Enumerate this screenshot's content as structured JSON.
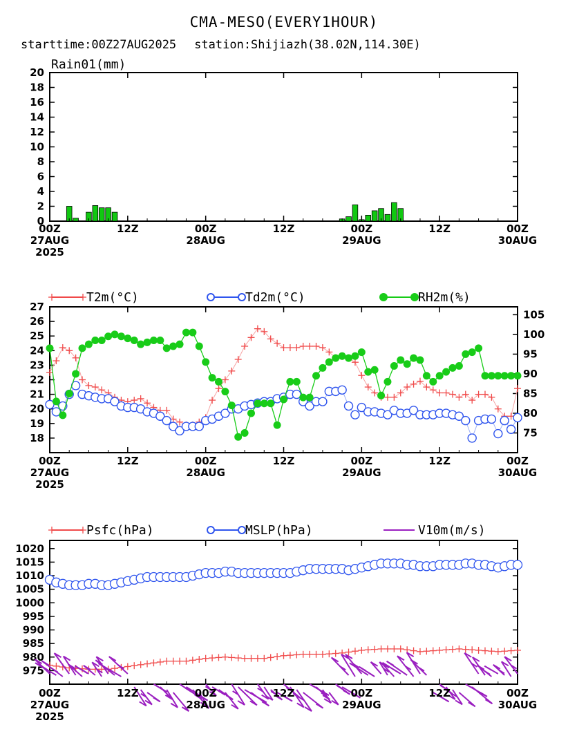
{
  "header": {
    "title": "CMA-MESO(EVERY1HOUR)",
    "starttime": "starttime:00Z27AUG2025",
    "station": "station:Shijiazh(38.02N,114.30E)"
  },
  "colors": {
    "rain": "#11c811",
    "t2m": "#f04a4a",
    "td2m": "#2f55ee",
    "rh2m": "#18cc18",
    "psfc": "#f04a4a",
    "mslp": "#2f55ee",
    "wind": "#9a1fc0"
  },
  "chart_data": [
    {
      "type": "bar",
      "ylabel": "Rain01(mm)",
      "ylim": [
        0,
        20
      ],
      "yticks": [
        0,
        2,
        4,
        6,
        8,
        10,
        12,
        14,
        16,
        18,
        20
      ],
      "x_ticks": [
        {
          "h": 0,
          "lines": [
            "00Z",
            "27AUG",
            "2025"
          ]
        },
        {
          "h": 12,
          "lines": [
            "12Z"
          ]
        },
        {
          "h": 24,
          "lines": [
            "00Z",
            "28AUG"
          ]
        },
        {
          "h": 36,
          "lines": [
            "12Z"
          ]
        },
        {
          "h": 48,
          "lines": [
            "00Z",
            "29AUG"
          ]
        },
        {
          "h": 60,
          "lines": [
            "12Z"
          ]
        },
        {
          "h": 72,
          "lines": [
            "00Z",
            "30AUG"
          ]
        }
      ],
      "x_range_hours": [
        0,
        72
      ],
      "bars": [
        {
          "h": 3,
          "v": 2.0
        },
        {
          "h": 4,
          "v": 0.4
        },
        {
          "h": 6,
          "v": 1.2
        },
        {
          "h": 7,
          "v": 2.1
        },
        {
          "h": 8,
          "v": 1.8
        },
        {
          "h": 9,
          "v": 1.8
        },
        {
          "h": 10,
          "v": 1.2
        },
        {
          "h": 45,
          "v": 0.3
        },
        {
          "h": 46,
          "v": 0.6
        },
        {
          "h": 47,
          "v": 2.2
        },
        {
          "h": 48,
          "v": 0.2
        },
        {
          "h": 49,
          "v": 0.8
        },
        {
          "h": 50,
          "v": 1.4
        },
        {
          "h": 51,
          "v": 1.7
        },
        {
          "h": 52,
          "v": 0.9
        },
        {
          "h": 53,
          "v": 2.5
        },
        {
          "h": 54,
          "v": 1.7
        }
      ]
    },
    {
      "type": "line",
      "legend": [
        {
          "label": "T2m(°C)",
          "marker": "plus",
          "color": "#f04a4a"
        },
        {
          "label": "Td2m(°C)",
          "marker": "open-circle",
          "color": "#2f55ee"
        },
        {
          "label": "RH2m(%)",
          "marker": "filled-circle",
          "color": "#18cc18"
        }
      ],
      "left_ylim": [
        17,
        27
      ],
      "left_yticks": [
        18,
        19,
        20,
        21,
        22,
        23,
        24,
        25,
        26,
        27
      ],
      "right_ylim": [
        70,
        107
      ],
      "right_yticks": [
        75,
        80,
        85,
        90,
        95,
        100,
        105
      ],
      "x_range_hours": [
        0,
        72
      ],
      "x_ticks": [
        {
          "h": 0,
          "lines": [
            "00Z",
            "27AUG",
            "2025"
          ]
        },
        {
          "h": 12,
          "lines": [
            "12Z"
          ]
        },
        {
          "h": 24,
          "lines": [
            "00Z",
            "28AUG"
          ]
        },
        {
          "h": 36,
          "lines": [
            "12Z"
          ]
        },
        {
          "h": 48,
          "lines": [
            "00Z",
            "29AUG"
          ]
        },
        {
          "h": 60,
          "lines": [
            "12Z"
          ]
        },
        {
          "h": 72,
          "lines": [
            "00Z",
            "30AUG"
          ]
        }
      ],
      "series": [
        {
          "name": "T2m(°C)",
          "axis": "left",
          "marker": "plus",
          "color": "#f04a4a",
          "x": [
            0,
            1,
            2,
            3,
            4,
            5,
            6,
            7,
            8,
            9,
            10,
            11,
            12,
            13,
            14,
            15,
            16,
            17,
            18,
            19,
            20,
            21,
            22,
            23,
            24,
            25,
            26,
            27,
            28,
            29,
            30,
            31,
            32,
            33,
            34,
            35,
            36,
            37,
            38,
            39,
            40,
            41,
            42,
            43,
            44,
            45,
            46,
            47,
            48,
            49,
            50,
            51,
            52,
            53,
            54,
            55,
            56,
            57,
            58,
            59,
            60,
            61,
            62,
            63,
            64,
            65,
            66,
            67,
            68,
            69,
            70,
            71,
            72
          ],
          "y": [
            22.5,
            23.3,
            24.2,
            24.0,
            23.5,
            22.0,
            21.6,
            21.5,
            21.3,
            21.1,
            20.8,
            20.6,
            20.5,
            20.6,
            20.7,
            20.4,
            20.1,
            19.9,
            19.9,
            19.3,
            19.1,
            18.9,
            18.9,
            19.1,
            19.4,
            20.6,
            21.4,
            22.0,
            22.6,
            23.4,
            24.3,
            24.9,
            25.5,
            25.3,
            24.8,
            24.5,
            24.2,
            24.2,
            24.2,
            24.3,
            24.3,
            24.3,
            24.2,
            23.9,
            23.5,
            23.6,
            23.5,
            23.2,
            22.3,
            21.5,
            21.1,
            20.8,
            20.8,
            20.8,
            21.1,
            21.5,
            21.7,
            21.9,
            21.5,
            21.3,
            21.1,
            21.1,
            21.0,
            20.8,
            21.0,
            20.6,
            21.0,
            21.0,
            20.8,
            20.0,
            19.5,
            19.5,
            21.4
          ]
        },
        {
          "name": "Td2m(°C)",
          "axis": "left",
          "marker": "open-circle",
          "color": "#2f55ee",
          "x": [
            0,
            1,
            2,
            3,
            4,
            5,
            6,
            7,
            8,
            9,
            10,
            11,
            12,
            13,
            14,
            15,
            16,
            17,
            18,
            19,
            20,
            21,
            22,
            23,
            24,
            25,
            26,
            27,
            28,
            29,
            30,
            31,
            32,
            33,
            34,
            35,
            36,
            37,
            38,
            39,
            40,
            41,
            42,
            43,
            44,
            45,
            46,
            47,
            48,
            49,
            50,
            51,
            52,
            53,
            54,
            55,
            56,
            57,
            58,
            59,
            60,
            61,
            62,
            63,
            64,
            65,
            66,
            67,
            68,
            69,
            70,
            71,
            72
          ],
          "y": [
            20.3,
            19.8,
            20.2,
            21.0,
            21.6,
            21.0,
            20.9,
            20.8,
            20.7,
            20.7,
            20.5,
            20.2,
            20.1,
            20.1,
            20.0,
            19.8,
            19.7,
            19.5,
            19.2,
            18.8,
            18.5,
            18.8,
            18.8,
            18.8,
            19.2,
            19.3,
            19.5,
            19.7,
            20.0,
            20.0,
            20.2,
            20.3,
            20.4,
            20.5,
            20.5,
            20.7,
            20.8,
            21.0,
            21.0,
            20.5,
            20.2,
            20.5,
            20.5,
            21.2,
            21.2,
            21.3,
            20.2,
            19.6,
            20.1,
            19.8,
            19.8,
            19.7,
            19.6,
            19.9,
            19.7,
            19.7,
            19.9,
            19.6,
            19.6,
            19.6,
            19.7,
            19.7,
            19.6,
            19.5,
            19.2,
            18.0,
            19.2,
            19.3,
            19.3,
            18.3,
            19.2,
            18.6,
            19.4
          ]
        },
        {
          "name": "RH2m(%)",
          "axis": "right",
          "marker": "filled-circle",
          "color": "#18cc18",
          "x": [
            0,
            1,
            2,
            3,
            4,
            5,
            6,
            7,
            8,
            9,
            10,
            11,
            12,
            13,
            14,
            15,
            16,
            17,
            18,
            19,
            20,
            21,
            22,
            23,
            24,
            25,
            26,
            27,
            28,
            29,
            30,
            31,
            32,
            33,
            34,
            35,
            36,
            37,
            38,
            39,
            40,
            41,
            42,
            43,
            44,
            45,
            46,
            47,
            48,
            49,
            50,
            51,
            52,
            53,
            54,
            55,
            56,
            57,
            58,
            59,
            60,
            61,
            62,
            63,
            64,
            65,
            66,
            67,
            68,
            69,
            70,
            71,
            72
          ],
          "y": [
            96.5,
            83.0,
            79.5,
            85.0,
            90.0,
            96.5,
            97.5,
            98.5,
            98.5,
            99.5,
            100.0,
            99.5,
            99.0,
            98.5,
            97.5,
            98.0,
            98.5,
            98.5,
            96.5,
            97.0,
            97.5,
            100.5,
            100.5,
            97.0,
            93.0,
            89.0,
            88.0,
            85.5,
            82.0,
            74.0,
            75.0,
            80.0,
            82.5,
            82.5,
            82.5,
            77.0,
            83.5,
            88.0,
            88.0,
            84.0,
            84.0,
            89.5,
            91.5,
            93.0,
            94.0,
            94.5,
            94.0,
            94.5,
            95.5,
            90.5,
            91.0,
            84.5,
            88.0,
            92.0,
            93.5,
            92.5,
            94.0,
            93.5,
            89.5,
            88.0,
            89.5,
            90.5,
            91.5,
            92.0,
            95.0,
            95.5,
            96.5,
            89.5,
            89.5,
            89.5,
            89.5,
            89.5,
            89.5
          ]
        }
      ]
    },
    {
      "type": "line",
      "legend": [
        {
          "label": "Psfc(hPa)",
          "marker": "plus",
          "color": "#f04a4a"
        },
        {
          "label": "MSLP(hPa)",
          "marker": "open-circle",
          "color": "#2f55ee"
        },
        {
          "label": "V10m(m/s)",
          "marker": "barb",
          "color": "#9a1fc0"
        }
      ],
      "ylim": [
        970,
        1023
      ],
      "yticks": [
        975,
        980,
        985,
        990,
        995,
        1000,
        1005,
        1010,
        1015,
        1020
      ],
      "x_range_hours": [
        0,
        72
      ],
      "x_ticks": [
        {
          "h": 0,
          "lines": [
            "00Z",
            "27AUG",
            "2025"
          ]
        },
        {
          "h": 12,
          "lines": [
            "12Z"
          ]
        },
        {
          "h": 24,
          "lines": [
            "00Z",
            "28AUG"
          ]
        },
        {
          "h": 36,
          "lines": [
            "12Z"
          ]
        },
        {
          "h": 48,
          "lines": [
            "00Z",
            "29AUG"
          ]
        },
        {
          "h": 60,
          "lines": [
            "12Z"
          ]
        },
        {
          "h": 72,
          "lines": [
            "00Z",
            "30AUG"
          ]
        }
      ],
      "series": [
        {
          "name": "Psfc(hPa)",
          "marker": "plus",
          "color": "#f04a4a",
          "x": [
            0,
            3,
            6,
            9,
            12,
            15,
            18,
            21,
            24,
            27,
            30,
            33,
            36,
            39,
            42,
            45,
            48,
            51,
            54,
            57,
            60,
            63,
            66,
            69,
            72
          ],
          "y": [
            977.0,
            976.0,
            975.5,
            975.5,
            976.5,
            977.5,
            978.5,
            978.5,
            979.5,
            980.0,
            979.5,
            979.5,
            980.5,
            981.0,
            981.0,
            981.5,
            982.5,
            983.0,
            983.0,
            982.0,
            982.5,
            983.0,
            982.5,
            982.0,
            982.5
          ]
        },
        {
          "name": "MSLP(hPa)",
          "marker": "open-circle",
          "color": "#2f55ee",
          "x": [
            0,
            1,
            2,
            3,
            4,
            5,
            6,
            7,
            8,
            9,
            10,
            11,
            12,
            13,
            14,
            15,
            16,
            17,
            18,
            19,
            20,
            21,
            22,
            23,
            24,
            25,
            26,
            27,
            28,
            29,
            30,
            31,
            32,
            33,
            34,
            35,
            36,
            37,
            38,
            39,
            40,
            41,
            42,
            43,
            44,
            45,
            46,
            47,
            48,
            49,
            50,
            51,
            52,
            53,
            54,
            55,
            56,
            57,
            58,
            59,
            60,
            61,
            62,
            63,
            64,
            65,
            66,
            67,
            68,
            69,
            70,
            71,
            72
          ],
          "y": [
            1008.5,
            1007.5,
            1007.0,
            1006.5,
            1006.5,
            1006.5,
            1007.0,
            1007.0,
            1006.5,
            1006.5,
            1007.0,
            1007.5,
            1008.0,
            1008.5,
            1009.0,
            1009.5,
            1009.5,
            1009.5,
            1009.5,
            1009.5,
            1009.5,
            1009.5,
            1010.0,
            1010.5,
            1011.0,
            1011.0,
            1011.0,
            1011.5,
            1011.5,
            1011.0,
            1011.0,
            1011.0,
            1011.0,
            1011.0,
            1011.0,
            1011.0,
            1011.0,
            1011.0,
            1011.5,
            1012.0,
            1012.5,
            1012.5,
            1012.5,
            1012.5,
            1012.5,
            1012.5,
            1012.0,
            1012.5,
            1013.0,
            1013.5,
            1014.0,
            1014.5,
            1014.5,
            1014.5,
            1014.5,
            1014.0,
            1014.0,
            1013.5,
            1013.5,
            1013.5,
            1014.0,
            1014.0,
            1014.0,
            1014.0,
            1014.5,
            1014.5,
            1014.0,
            1014.0,
            1013.5,
            1013.0,
            1013.5,
            1014.0,
            1014.0
          ]
        }
      ]
    }
  ]
}
